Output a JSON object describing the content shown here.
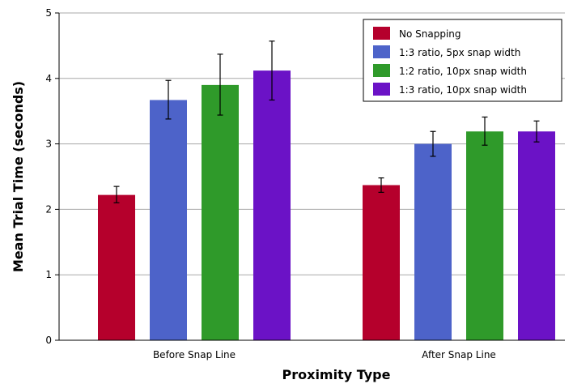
{
  "chart_data": {
    "type": "bar",
    "title": "",
    "xlabel": "Proximity Type",
    "ylabel": "Mean Trial Time (seconds)",
    "ylim": [
      0,
      5
    ],
    "yticks": [
      "0",
      "1",
      "2",
      "3",
      "4",
      "5"
    ],
    "grid": true,
    "legend_position": "top-right",
    "categories": [
      "Before Snap Line",
      "After Snap Line"
    ],
    "series": [
      {
        "name": "No Snapping",
        "color": "#b5002c",
        "values": [
          2.22,
          2.37
        ],
        "err_low": [
          2.1,
          2.26
        ],
        "err_high": [
          2.35,
          2.48
        ]
      },
      {
        "name": "1:3 ratio, 5px snap width",
        "color": "#4d63c9",
        "values": [
          3.67,
          3.0
        ],
        "err_low": [
          3.38,
          2.81
        ],
        "err_high": [
          3.97,
          3.19
        ]
      },
      {
        "name": "1:2 ratio, 10px snap width",
        "color": "#2f9a2a",
        "values": [
          3.9,
          3.19
        ],
        "err_low": [
          3.44,
          2.98
        ],
        "err_high": [
          4.37,
          3.41
        ]
      },
      {
        "name": "1:3 ratio, 10px snap width",
        "color": "#6b12c6",
        "values": [
          4.12,
          3.19
        ],
        "err_low": [
          3.67,
          3.03
        ],
        "err_high": [
          4.57,
          3.35
        ]
      }
    ]
  }
}
